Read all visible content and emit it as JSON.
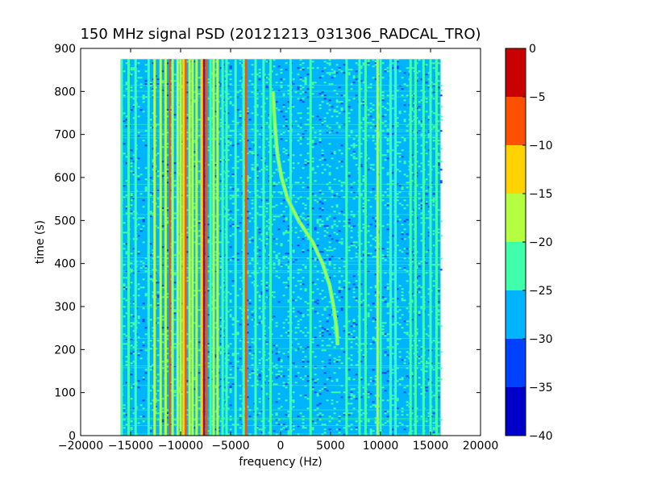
{
  "chart_data": {
    "type": "heatmap",
    "title": "150 MHz signal PSD (20121213_031306_RADCAL_TRO)",
    "xlabel": "frequency (Hz)",
    "ylabel": "time (s)",
    "xlim": [
      -20000,
      20000
    ],
    "ylim": [
      0,
      900
    ],
    "x_ticks": [
      -20000,
      -15000,
      -10000,
      -5000,
      0,
      5000,
      10000,
      15000,
      20000
    ],
    "y_ticks": [
      0,
      100,
      200,
      300,
      400,
      500,
      600,
      700,
      800,
      900
    ],
    "data_extent": {
      "x": [
        -16000,
        16000
      ],
      "y": [
        0,
        875
      ]
    },
    "colorbar": {
      "range": [
        -40,
        0
      ],
      "ticks": [
        0,
        -5,
        -10,
        -15,
        -20,
        -25,
        -30,
        -35,
        -40
      ],
      "levels": [
        {
          "from": -40,
          "to": -35,
          "color": "#0000c8"
        },
        {
          "from": -35,
          "to": -30,
          "color": "#0040ff"
        },
        {
          "from": -30,
          "to": -25,
          "color": "#00b4ff"
        },
        {
          "from": -25,
          "to": -20,
          "color": "#40ffaa"
        },
        {
          "from": -20,
          "to": -15,
          "color": "#b4ff40"
        },
        {
          "from": -15,
          "to": -10,
          "color": "#ffd200"
        },
        {
          "from": -10,
          "to": -5,
          "color": "#ff5000"
        },
        {
          "from": -5,
          "to": 0,
          "color": "#c80000"
        }
      ]
    },
    "background_level": -27,
    "spectral_lines": [
      {
        "freq": -15900,
        "level": -22
      },
      {
        "freq": -15200,
        "level": -22
      },
      {
        "freq": -14500,
        "level": -22
      },
      {
        "freq": -13200,
        "level": -22
      },
      {
        "freq": -12600,
        "level": -17
      },
      {
        "freq": -12000,
        "level": -17
      },
      {
        "freq": -11500,
        "level": -17
      },
      {
        "freq": -11100,
        "level": -8
      },
      {
        "freq": -10800,
        "level": -17
      },
      {
        "freq": -10300,
        "level": -17
      },
      {
        "freq": -10000,
        "level": -17
      },
      {
        "freq": -9700,
        "level": -12
      },
      {
        "freq": -9500,
        "level": -8
      },
      {
        "freq": -9100,
        "level": -17
      },
      {
        "freq": -8800,
        "level": -17
      },
      {
        "freq": -8400,
        "level": -17
      },
      {
        "freq": -7900,
        "level": -12
      },
      {
        "freq": -7650,
        "level": -3
      },
      {
        "freq": -7400,
        "level": -8
      },
      {
        "freq": -7000,
        "level": -22
      },
      {
        "freq": -6700,
        "level": -17
      },
      {
        "freq": -6300,
        "level": -17
      },
      {
        "freq": -5800,
        "level": -22
      },
      {
        "freq": -5400,
        "level": -22
      },
      {
        "freq": -4500,
        "level": -22
      },
      {
        "freq": -3700,
        "level": -22
      },
      {
        "freq": -3450,
        "level": -8
      },
      {
        "freq": -2500,
        "level": -22
      },
      {
        "freq": -1700,
        "level": -22
      },
      {
        "freq": -1000,
        "level": -22
      },
      {
        "freq": 1000,
        "level": -22
      },
      {
        "freq": 3000,
        "level": -22
      },
      {
        "freq": 6600,
        "level": -22
      },
      {
        "freq": 7900,
        "level": -22
      },
      {
        "freq": 8500,
        "level": -22
      },
      {
        "freq": 9700,
        "level": -17
      },
      {
        "freq": 10000,
        "level": -22
      },
      {
        "freq": 11000,
        "level": -22
      },
      {
        "freq": 11500,
        "level": -22
      },
      {
        "freq": 13000,
        "level": -22
      },
      {
        "freq": 13500,
        "level": -22
      },
      {
        "freq": 14300,
        "level": -22
      },
      {
        "freq": 15000,
        "level": -22
      },
      {
        "freq": 15600,
        "level": -22
      }
    ],
    "drifting_signal": {
      "level": -17,
      "points": [
        {
          "t": 210,
          "f": 5700
        },
        {
          "t": 250,
          "f": 5600
        },
        {
          "t": 300,
          "f": 5300
        },
        {
          "t": 350,
          "f": 4900
        },
        {
          "t": 400,
          "f": 4200
        },
        {
          "t": 450,
          "f": 3200
        },
        {
          "t": 500,
          "f": 1800
        },
        {
          "t": 550,
          "f": 700
        },
        {
          "t": 600,
          "f": 100
        },
        {
          "t": 650,
          "f": -300
        },
        {
          "t": 700,
          "f": -500
        },
        {
          "t": 750,
          "f": -650
        },
        {
          "t": 800,
          "f": -750
        }
      ]
    }
  }
}
